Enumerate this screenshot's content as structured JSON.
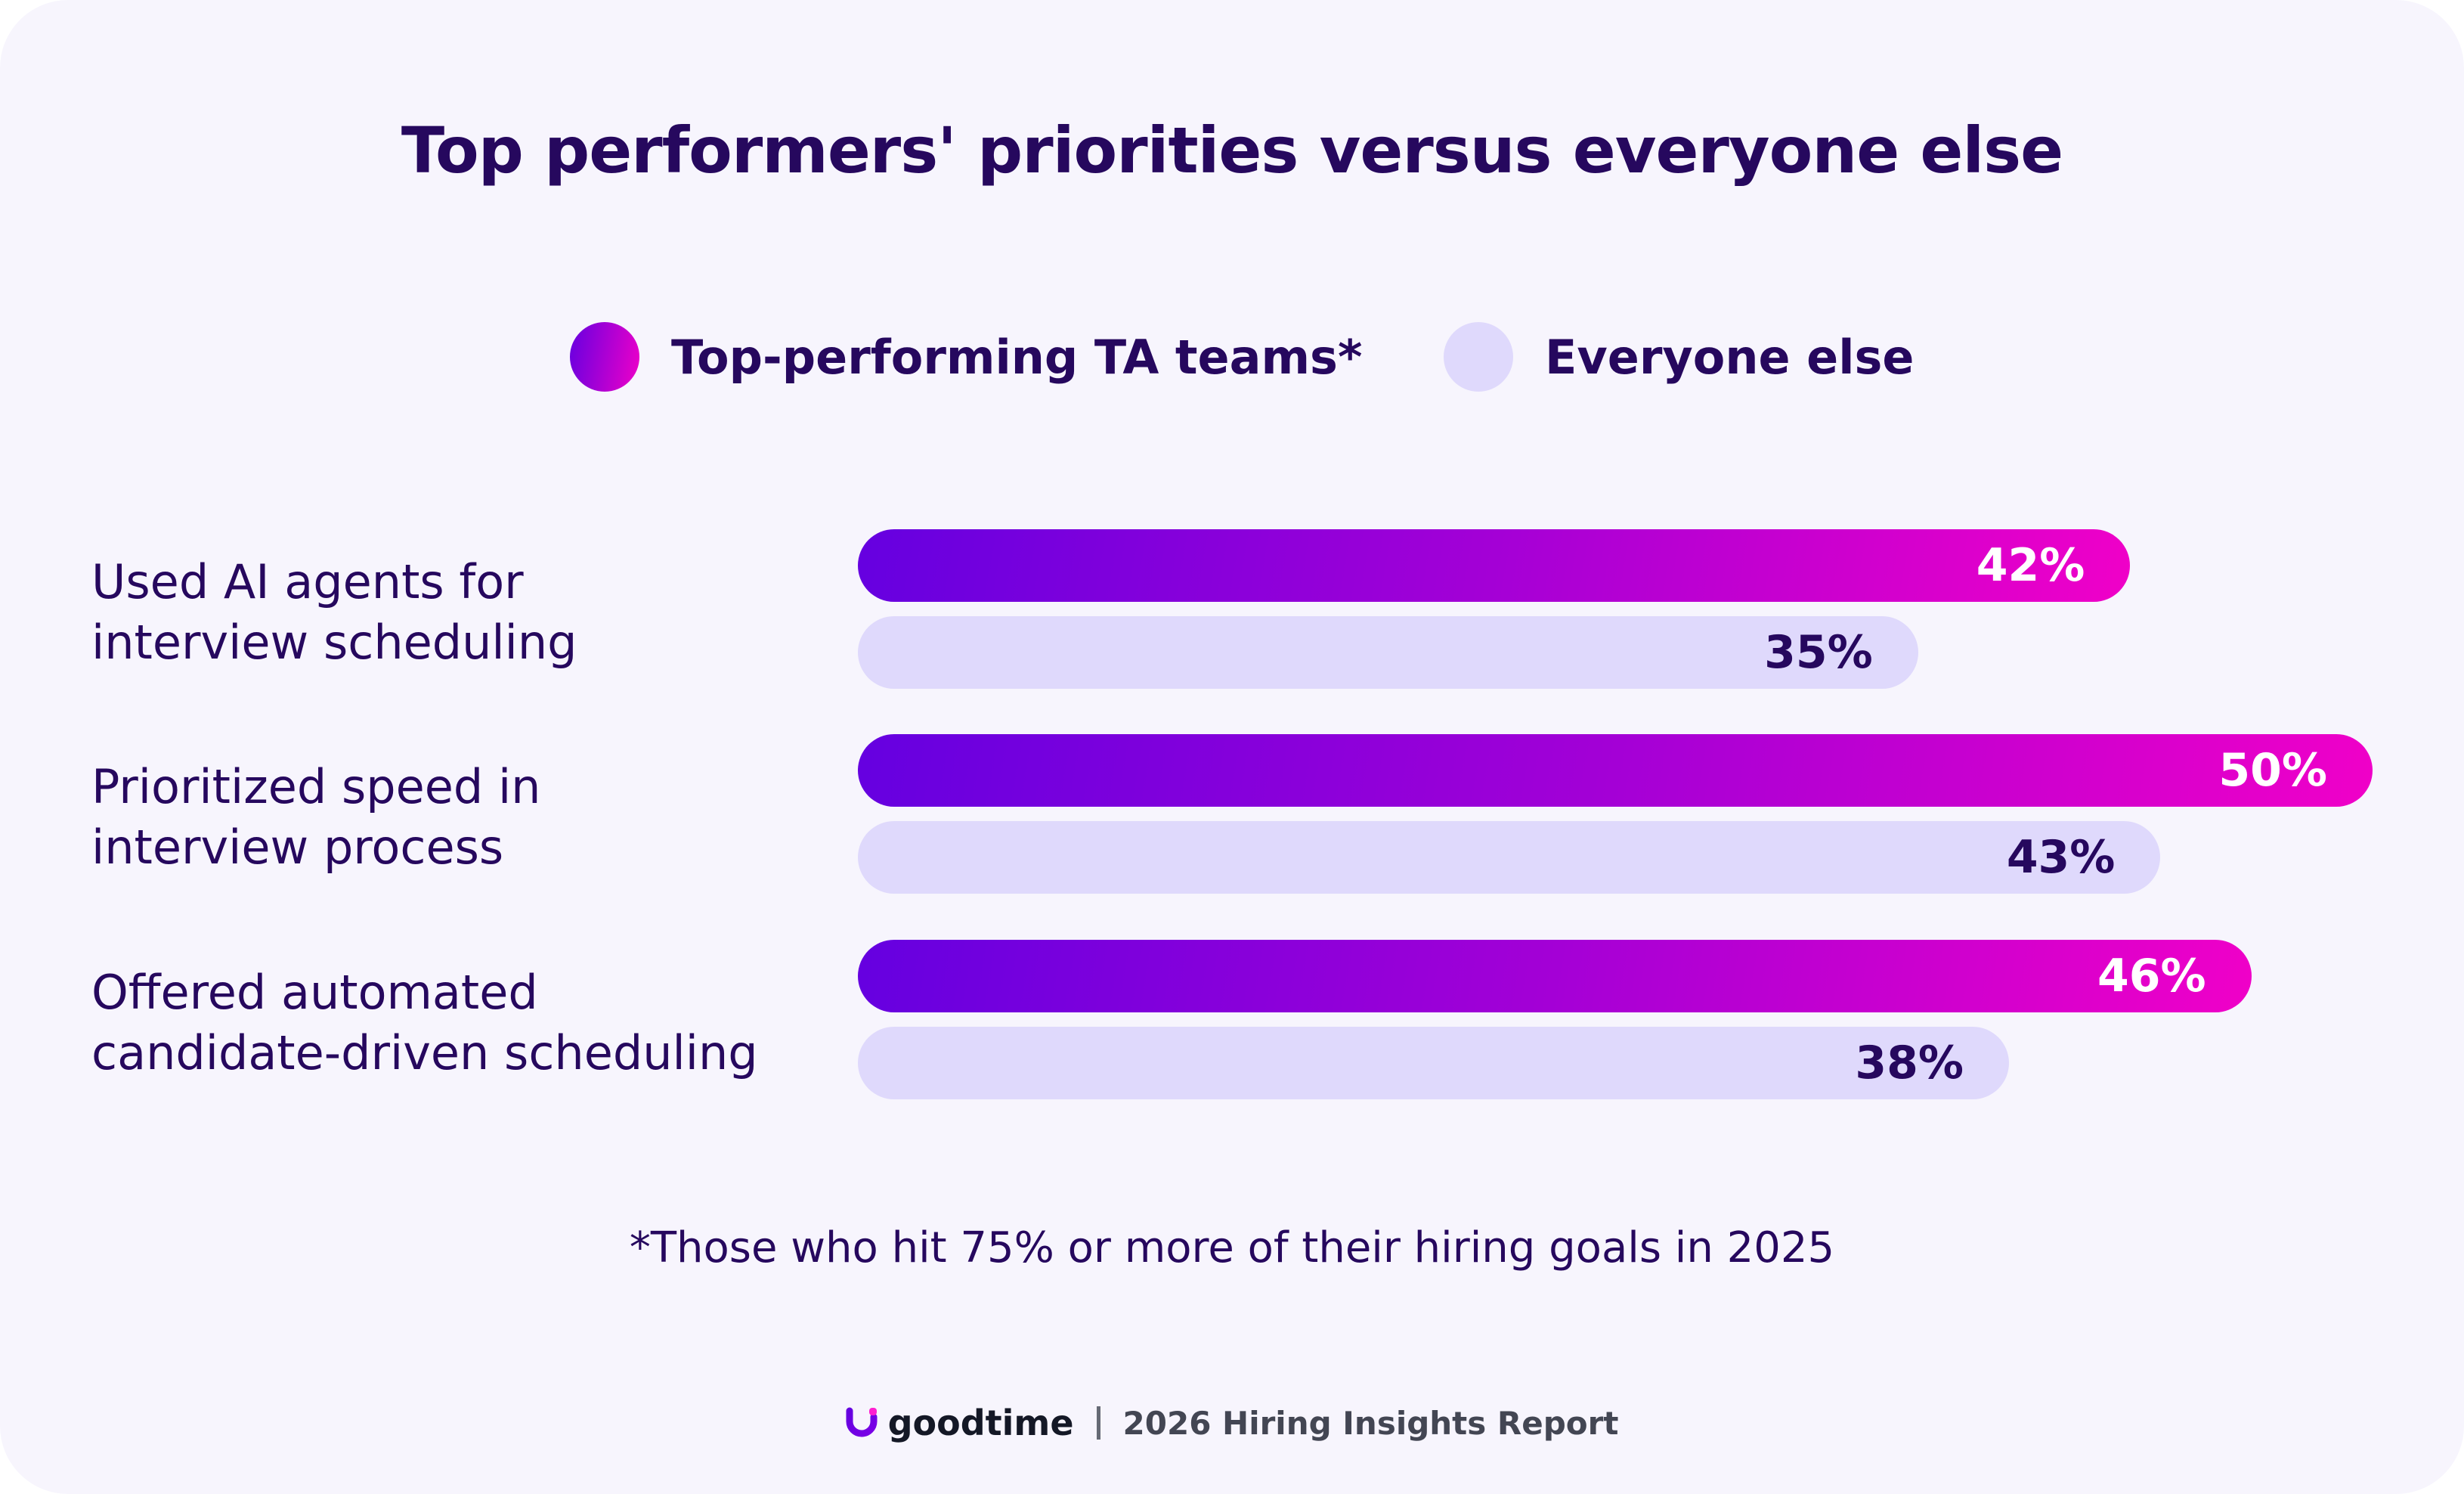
{
  "title": "Top performers' priorities versus everyone else",
  "legend": [
    {
      "label": "Top-performing TA teams*",
      "color": "#a400d6"
    },
    {
      "label": "Everyone else",
      "color": "#dfd9fc"
    }
  ],
  "chart_data": {
    "type": "bar",
    "orientation": "horizontal",
    "title": "Top performers' priorities versus everyone else",
    "categories": [
      [
        "Used AI agents for",
        "interview scheduling"
      ],
      [
        "Prioritized speed in",
        "interview process"
      ],
      [
        "Offered automated",
        "candidate-driven scheduling"
      ]
    ],
    "series": [
      {
        "name": "Top-performing TA teams*",
        "values": [
          42,
          50,
          46
        ],
        "labels": [
          "42%",
          "50%",
          "46%"
        ],
        "color_start": "#6500e0",
        "color_end": "#f000c8"
      },
      {
        "name": "Everyone else",
        "values": [
          35,
          43,
          38
        ],
        "labels": [
          "35%",
          "43%",
          "38%"
        ],
        "color": "#dfd9fc"
      }
    ],
    "legend_position": "top",
    "grid": false
  },
  "footnote": "*Those who hit 75% or more of their hiring goals in 2025",
  "footer": {
    "logo": "goodtime",
    "report": "2026 Hiring Insights Report"
  }
}
